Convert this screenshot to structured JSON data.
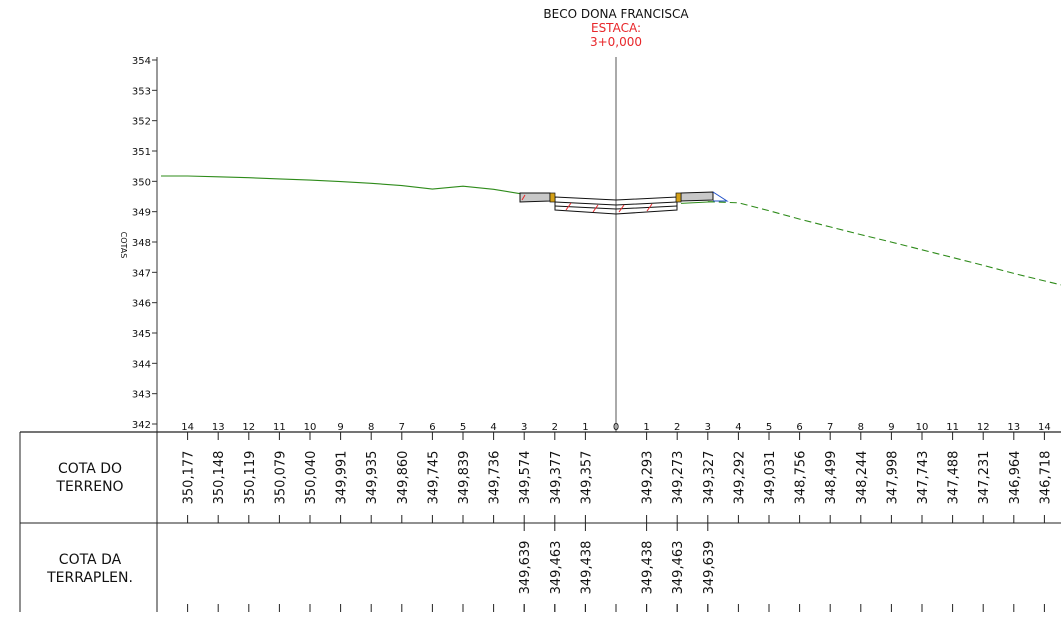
{
  "header": {
    "title": "BECO DONA FRANCISCA",
    "station_label": "ESTACA:",
    "station_value": "3+0,000"
  },
  "axis": {
    "ylabel": "COTAS",
    "yticks": [
      "354",
      "353",
      "352",
      "351",
      "350",
      "349",
      "348",
      "347",
      "346",
      "345",
      "344",
      "343",
      "342"
    ]
  },
  "rows": {
    "terrain_label_1": "COTA DO",
    "terrain_label_2": "TERRENO",
    "fill_label_1": "COTA DA",
    "fill_label_2": "TERRAPLEN."
  },
  "colors": {
    "terrain_line": "#2e8b1a",
    "station_text": "#e8262a",
    "road_fill": "#c8c8c8",
    "shoulder": "#d4a017",
    "slope_marks": "#e8262a"
  },
  "chart_data": {
    "type": "line",
    "title": "BECO DONA FRANCISCA",
    "ylabel": "COTAS",
    "ylim": [
      342,
      354
    ],
    "distance_labels": [
      "14",
      "13",
      "12",
      "11",
      "10",
      "9",
      "8",
      "7",
      "6",
      "5",
      "4",
      "3",
      "2",
      "1",
      "0",
      "1",
      "2",
      "3",
      "4",
      "5",
      "6",
      "7",
      "8",
      "9",
      "10",
      "11",
      "12",
      "13",
      "14"
    ],
    "terrain": {
      "x": [
        -14,
        -13,
        -12,
        -11,
        -10,
        -9,
        -8,
        -7,
        -6,
        -5,
        -4,
        -3,
        -2,
        -1,
        1,
        2,
        3,
        4,
        5,
        6,
        7,
        8,
        9,
        10,
        11,
        12,
        13,
        14
      ],
      "labels": [
        "14",
        "13",
        "12",
        "11",
        "10",
        "9",
        "8",
        "7",
        "6",
        "5",
        "4",
        "3",
        "2",
        "1",
        "1",
        "2",
        "3",
        "4",
        "5",
        "6",
        "7",
        "8",
        "9",
        "10",
        "11",
        "12",
        "13",
        "14"
      ],
      "elevations": [
        "350,177",
        "350,148",
        "350,119",
        "350,079",
        "350,040",
        "349,991",
        "349,935",
        "349,860",
        "349,745",
        "349,839",
        "349,736",
        "349,574",
        "349,377",
        "349,357",
        "349,293",
        "349,273",
        "349,327",
        "349,292",
        "349,031",
        "348,756",
        "348,499",
        "348,244",
        "347,998",
        "347,743",
        "347,488",
        "347,231",
        "346,964",
        "346,718"
      ]
    },
    "grading": {
      "x": [
        -3,
        -2,
        -1,
        1,
        2,
        3
      ],
      "labels": [
        "3",
        "2",
        "1",
        "1",
        "2",
        "3"
      ],
      "elevations": [
        "349,639",
        "349,463",
        "349,438",
        "349,438",
        "349,463",
        "349,639"
      ]
    }
  }
}
